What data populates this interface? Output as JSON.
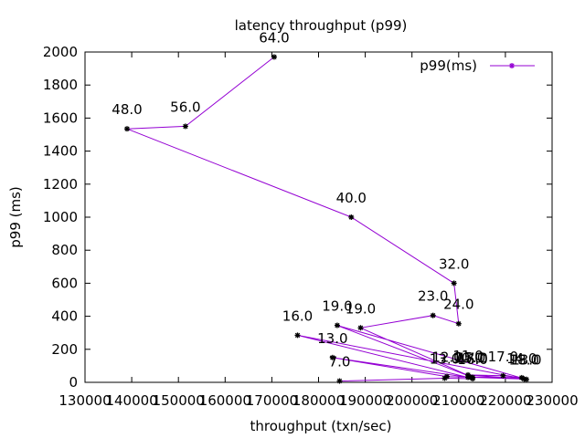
{
  "chart_data": {
    "type": "line",
    "title": "latency throughput (p99)",
    "xlabel": "throughput (txn/sec)",
    "ylabel": "p99 (ms)",
    "xlim": [
      130000,
      230000
    ],
    "ylim": [
      0,
      2000
    ],
    "xticks": [
      130000,
      140000,
      150000,
      160000,
      170000,
      180000,
      190000,
      200000,
      210000,
      220000,
      230000
    ],
    "yticks": [
      0,
      200,
      400,
      600,
      800,
      1000,
      1200,
      1400,
      1600,
      1800,
      2000
    ],
    "xtick_labels": [
      "130000",
      "140000",
      "150000",
      "160000",
      "170000",
      "180000",
      "190000",
      "200000",
      "210000",
      "220000",
      "230000"
    ],
    "ytick_labels": [
      "0",
      "200",
      "400",
      "600",
      "800",
      "1000",
      "1200",
      "1400",
      "1600",
      "1800",
      "2000"
    ],
    "legend": {
      "position": "top-right"
    },
    "grid": false,
    "colors": {
      "series": "#9400d3",
      "marker": "#000000"
    },
    "series": [
      {
        "name": "p99(ms)",
        "points": [
          {
            "x": 184500,
            "y": 8,
            "label": "7.0"
          },
          {
            "x": 207000,
            "y": 25,
            "label": "13.0"
          },
          {
            "x": 213000,
            "y": 22,
            "label": "16.0"
          },
          {
            "x": 212500,
            "y": 32,
            "label": "15.0"
          },
          {
            "x": 223500,
            "y": 28,
            "label": "14.0"
          },
          {
            "x": 219500,
            "y": 40,
            "label": "17.0"
          },
          {
            "x": 212000,
            "y": 45,
            "label": "11.0"
          },
          {
            "x": 224000,
            "y": 20,
            "label": "18.0"
          },
          {
            "x": 207500,
            "y": 35,
            "label": "12.0"
          },
          {
            "x": 183000,
            "y": 150,
            "label": "13.0"
          },
          {
            "x": 212000,
            "y": 30,
            "label": "10.0"
          },
          {
            "x": 175500,
            "y": 285,
            "label": "16.0"
          },
          {
            "x": 224500,
            "y": 18,
            "label": "13.0"
          },
          {
            "x": 184000,
            "y": 345,
            "label": "19.0"
          },
          {
            "x": 213000,
            "y": 30,
            "label": "17.0"
          },
          {
            "x": 189000,
            "y": 330,
            "label": "19.0"
          },
          {
            "x": 204500,
            "y": 405,
            "label": "23.0"
          },
          {
            "x": 210000,
            "y": 355,
            "label": "24.0"
          },
          {
            "x": 209000,
            "y": 600,
            "label": "32.0"
          },
          {
            "x": 187000,
            "y": 1000,
            "label": "40.0"
          },
          {
            "x": 139000,
            "y": 1535,
            "label": "48.0"
          },
          {
            "x": 151500,
            "y": 1550,
            "label": "56.0"
          },
          {
            "x": 170500,
            "y": 1970,
            "label": "64.0"
          }
        ]
      }
    ]
  }
}
